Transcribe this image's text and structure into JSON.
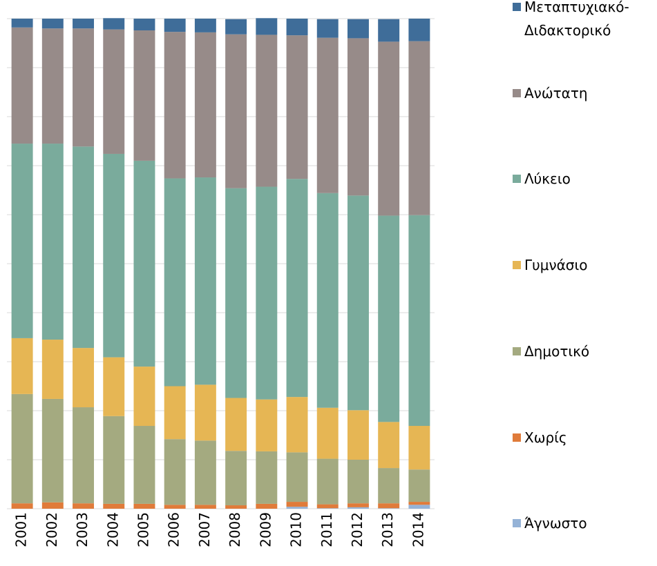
{
  "chart_data": {
    "type": "stacked_bar_100",
    "categories": [
      "2001",
      "2002",
      "2003",
      "2004",
      "2005",
      "2006",
      "2007",
      "2008",
      "2009",
      "2010",
      "2011",
      "2012",
      "2013",
      "2014"
    ],
    "series": [
      {
        "name": "Άγνωστο",
        "color": "#95b3d7",
        "values": [
          0,
          0,
          0,
          0,
          0,
          0,
          0,
          0,
          0,
          0.4,
          0.1,
          0.3,
          0.1,
          0.8
        ]
      },
      {
        "name": "Χωρίς",
        "color": "#e07b3a",
        "values": [
          1.1,
          1.3,
          1.1,
          1.0,
          1.0,
          0.8,
          0.8,
          0.7,
          1.0,
          1.0,
          0.8,
          0.8,
          1.0,
          0.6
        ]
      },
      {
        "name": "Δημοτικό",
        "color": "#a4aa80",
        "values": [
          22.3,
          21.1,
          19.6,
          17.9,
          15.9,
          13.4,
          13.1,
          11.1,
          10.7,
          10.1,
          9.3,
          8.9,
          7.2,
          6.6
        ]
      },
      {
        "name": "Γυμνάσιο",
        "color": "#e6b654",
        "values": [
          11.4,
          12.1,
          12.1,
          12.0,
          12.1,
          10.8,
          11.4,
          10.8,
          10.6,
          11.3,
          10.4,
          10.1,
          9.4,
          8.9
        ]
      },
      {
        "name": "Λύκειο",
        "color": "#7aab9c",
        "values": [
          39.7,
          40.0,
          41.1,
          41.5,
          42.0,
          42.4,
          42.3,
          42.8,
          43.4,
          44.5,
          43.8,
          43.8,
          42.1,
          43.0
        ]
      },
      {
        "name": "Ανώτατη",
        "color": "#978b89",
        "values": [
          23.7,
          23.5,
          24.1,
          25.4,
          26.6,
          29.9,
          29.6,
          31.4,
          31.0,
          29.3,
          31.7,
          32.1,
          35.5,
          35.5
        ]
      },
      {
        "name": "Μεταπτυχιακό-Διδακτορικό",
        "color": "#3f6d99",
        "values": [
          1.8,
          2.0,
          2.0,
          2.3,
          2.4,
          2.7,
          2.8,
          3.1,
          3.4,
          3.4,
          3.8,
          3.9,
          4.6,
          4.6
        ]
      }
    ],
    "ylim": [
      0,
      100
    ],
    "yticks": [
      0,
      10,
      20,
      30,
      40,
      50,
      60,
      70,
      80,
      90,
      100
    ],
    "grid": true,
    "legend": "right"
  }
}
